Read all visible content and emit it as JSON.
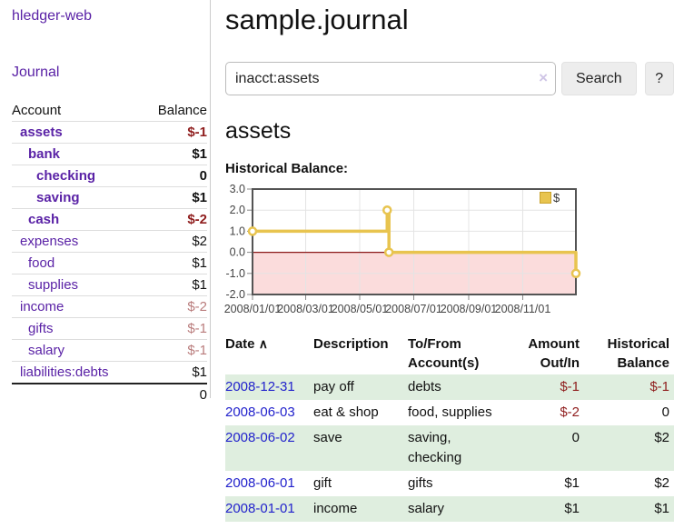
{
  "sidebar": {
    "app_title": "hledger-web",
    "nav": {
      "journal_label": "Journal"
    },
    "accounts_table": {
      "account_header": "Account",
      "balance_header": "Balance",
      "accounts": [
        {
          "label": "assets",
          "balance": "$-1"
        },
        {
          "label": "bank",
          "balance": "$1"
        },
        {
          "label": "checking",
          "balance": "0"
        },
        {
          "label": "saving",
          "balance": "$1"
        },
        {
          "label": "cash",
          "balance": "$-2"
        },
        {
          "label": "expenses",
          "balance": "$2"
        },
        {
          "label": "food",
          "balance": "$1"
        },
        {
          "label": "supplies",
          "balance": "$1"
        },
        {
          "label": "income",
          "balance": "$-2"
        },
        {
          "label": "gifts",
          "balance": "$-1"
        },
        {
          "label": "salary",
          "balance": "$-1"
        },
        {
          "label": "liabilities:debts",
          "balance": "$1"
        }
      ],
      "total": "0"
    }
  },
  "main": {
    "title": "sample.journal",
    "search": {
      "value": "inacct:assets",
      "clear_icon": "×",
      "button_label": "Search",
      "help_label": "?"
    },
    "account_heading": "assets",
    "chart_heading": "Historical Balance:",
    "register": {
      "headers": {
        "date": "Date",
        "sort_icon": "∧",
        "description": "Description",
        "accounts": "To/From Account(s)",
        "amount": "Amount Out/In",
        "balance": "Historical Balance"
      },
      "rows": [
        {
          "date": "2008-12-31",
          "description": "pay off",
          "accounts": "debts",
          "amount": "$-1",
          "balance": "$-1"
        },
        {
          "date": "2008-06-03",
          "description": "eat & shop",
          "accounts": "food, supplies",
          "amount": "$-2",
          "balance": "0"
        },
        {
          "date": "2008-06-02",
          "description": "save",
          "accounts": "saving, checking",
          "amount": "0",
          "balance": "$2"
        },
        {
          "date": "2008-06-01",
          "description": "gift",
          "accounts": "gifts",
          "amount": "$1",
          "balance": "$2"
        },
        {
          "date": "2008-01-01",
          "description": "income",
          "accounts": "salary",
          "amount": "$1",
          "balance": "$1"
        }
      ]
    }
  },
  "chart_data": {
    "type": "line",
    "subtype": "step",
    "title": "Historical Balance:",
    "series": [
      {
        "name": "$",
        "color": "#e8c44f",
        "points": [
          [
            "2008-01-01",
            1
          ],
          [
            "2008-06-01",
            2
          ],
          [
            "2008-06-03",
            0
          ],
          [
            "2008-12-31",
            -1
          ]
        ]
      }
    ],
    "x_ticks": [
      "2008/01/01",
      "2008/03/01",
      "2008/05/01",
      "2008/07/01",
      "2008/09/01",
      "2008/11/01"
    ],
    "y_ticks": [
      3.0,
      2.0,
      1.0,
      0.0,
      -1.0,
      -2.0
    ],
    "ylim": [
      -2,
      3
    ],
    "grid": true,
    "legend_position": "top-right",
    "negative_fill": "#fbdcdc",
    "zero_line_color": "#8b1a1a",
    "border_color": "#545454",
    "gridline_color": "#e4e4e4"
  },
  "colors": {
    "link_purple": "#5a22a6",
    "link_blue": "#2222cc",
    "negative_strong": "#8f1d1d",
    "negative_soft": "#b97c7c",
    "row_stripe_green": "#dfeedf",
    "series_gold": "#e8c44f"
  }
}
